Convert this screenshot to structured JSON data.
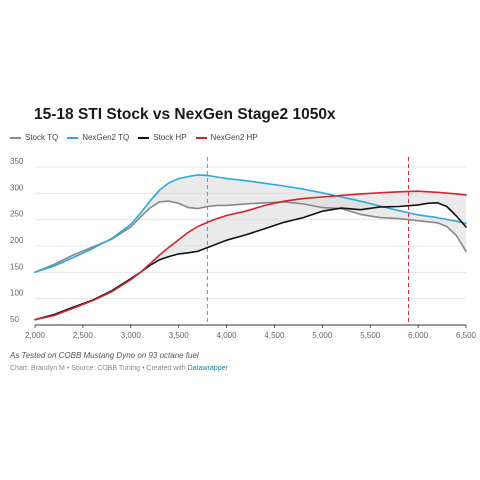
{
  "chart_data": {
    "type": "line",
    "title": "15-18 STI Stock vs NexGen Stage2 1050x",
    "xlabel": "",
    "ylabel": "",
    "xlim": [
      2000,
      6500
    ],
    "ylim": [
      50,
      350
    ],
    "x_ticks": [
      "2,000",
      "2,500",
      "3,000",
      "3,500",
      "4,000",
      "4,500",
      "5,000",
      "5,500",
      "6,000",
      "6,500"
    ],
    "x_tick_values": [
      2000,
      2500,
      3000,
      3500,
      4000,
      4500,
      5000,
      5500,
      6000,
      6500
    ],
    "y_ticks": [
      "50",
      "100",
      "150",
      "200",
      "250",
      "300",
      "350"
    ],
    "y_tick_values": [
      50,
      100,
      150,
      200,
      250,
      300,
      350
    ],
    "grid": "horizontal",
    "legend_position": "top-left",
    "series": [
      {
        "name": "Stock TQ",
        "color": "#888888",
        "x": [
          2000,
          2200,
          2400,
          2600,
          2800,
          3000,
          3100,
          3200,
          3300,
          3400,
          3500,
          3600,
          3700,
          3800,
          3900,
          4000,
          4200,
          4400,
          4600,
          4800,
          5000,
          5200,
          5400,
          5600,
          5800,
          6000,
          6200,
          6300,
          6400,
          6500
        ],
        "y": [
          150,
          165,
          183,
          198,
          213,
          236,
          255,
          272,
          284,
          285,
          281,
          273,
          271,
          275,
          277,
          277,
          280,
          282,
          284,
          280,
          273,
          271,
          260,
          254,
          252,
          248,
          244,
          237,
          220,
          190
        ]
      },
      {
        "name": "NexGen2 TQ",
        "color": "#2ea8de",
        "x": [
          2000,
          2200,
          2400,
          2600,
          2800,
          3000,
          3100,
          3200,
          3300,
          3400,
          3500,
          3600,
          3700,
          3800,
          3900,
          4000,
          4200,
          4400,
          4600,
          4800,
          5000,
          5200,
          5400,
          5600,
          5800,
          6000,
          6200,
          6400,
          6500
        ],
        "y": [
          150,
          162,
          178,
          195,
          214,
          241,
          262,
          285,
          306,
          320,
          328,
          332,
          335,
          334,
          331,
          328,
          324,
          319,
          314,
          308,
          301,
          293,
          285,
          276,
          267,
          259,
          254,
          247,
          243
        ]
      },
      {
        "name": "Stock HP",
        "color": "#111111",
        "x": [
          2000,
          2200,
          2400,
          2600,
          2800,
          3000,
          3100,
          3200,
          3300,
          3400,
          3500,
          3600,
          3700,
          3800,
          3900,
          4000,
          4200,
          4400,
          4600,
          4800,
          5000,
          5200,
          5400,
          5600,
          5800,
          6000,
          6100,
          6200,
          6300,
          6400,
          6500
        ],
        "y": [
          60,
          70,
          84,
          97,
          115,
          138,
          150,
          163,
          174,
          180,
          185,
          187,
          190,
          197,
          204,
          211,
          221,
          233,
          245,
          254,
          266,
          272,
          269,
          274,
          275,
          278,
          281,
          282,
          275,
          257,
          236
        ]
      },
      {
        "name": "NexGen2 HP",
        "color": "#d22630",
        "x": [
          2000,
          2200,
          2400,
          2600,
          2800,
          3000,
          3100,
          3200,
          3300,
          3400,
          3500,
          3600,
          3700,
          3800,
          3900,
          4000,
          4200,
          4400,
          4600,
          4800,
          5000,
          5200,
          5400,
          5600,
          5800,
          6000,
          6200,
          6400,
          6500
        ],
        "y": [
          60,
          68,
          82,
          96,
          113,
          136,
          150,
          166,
          183,
          198,
          212,
          226,
          237,
          245,
          252,
          258,
          266,
          277,
          285,
          290,
          293,
          296,
          299,
          301,
          303,
          304,
          302,
          299,
          297
        ]
      }
    ],
    "reference_lines": [
      {
        "x": 3800,
        "color": "#2ea8de",
        "style": "dashed"
      },
      {
        "x": 5900,
        "color": "#d22630",
        "style": "dashed"
      }
    ],
    "shaded_regions": [
      {
        "between": [
          "Stock TQ",
          "NexGen2 TQ"
        ],
        "color": "#d9d9d9"
      },
      {
        "between": [
          "Stock HP",
          "NexGen2 HP"
        ],
        "color": "#d9d9d9"
      }
    ]
  },
  "footer": {
    "note": "As Tested on COBB Mustang Dyno on 93 octane fuel",
    "credit_prefix": "Chart: Brandyn M • Source: COBB Tuning • Created with",
    "credit_link": "Datawrapper"
  }
}
